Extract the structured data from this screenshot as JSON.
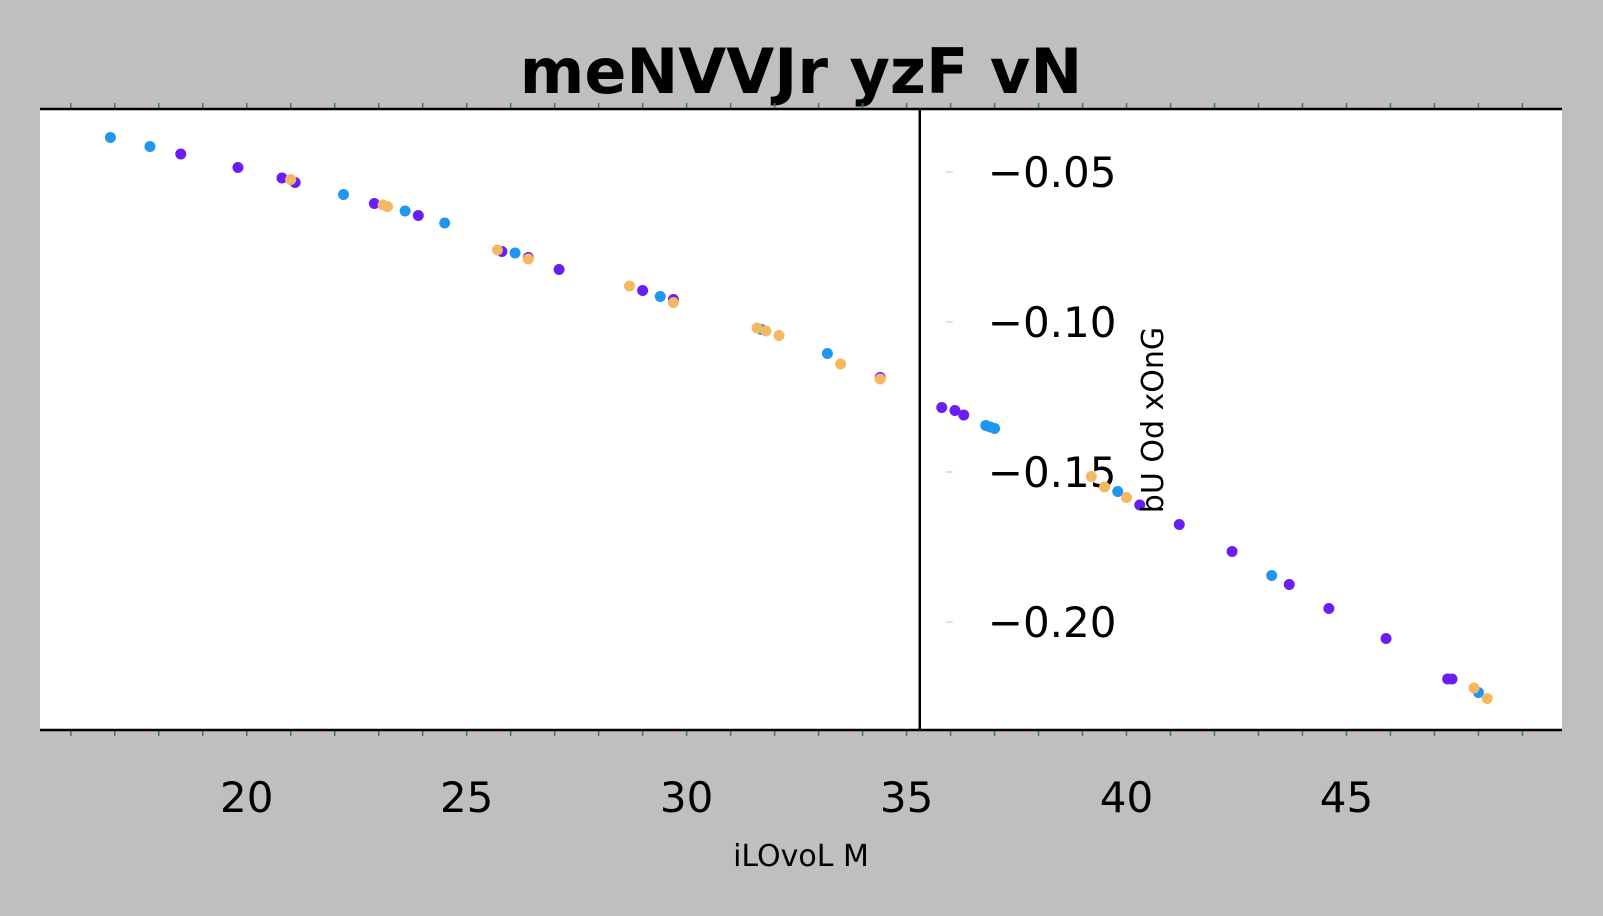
{
  "chart_data": {
    "type": "scatter",
    "title": "meNVVJr yzF  vN",
    "xlabel": "iLOvoL M",
    "ylabel": "bU Od xOnG",
    "xlim": [
      15.3,
      49.9
    ],
    "ylim": [
      -0.236,
      -0.029
    ],
    "xticks": [
      20,
      25,
      30,
      35,
      40,
      45
    ],
    "xtick_labels": [
      "20",
      "25",
      "30",
      "35",
      "40",
      "45"
    ],
    "yticks": [
      -0.05,
      -0.1,
      -0.15,
      -0.2
    ],
    "ytick_labels": [
      "−0.05",
      "−0.10",
      "−0.15",
      "−0.20"
    ],
    "y_axis_position_x": 35.3,
    "grid": false,
    "legend": "none",
    "colors": {
      "blue": "#1f96f0",
      "purple": "#6a1ef5",
      "orange": "#f5b862",
      "tick_green": "#2e8b2e"
    },
    "series": [
      {
        "color": "#1f96f0",
        "x": [
          16.9,
          17.8,
          22.2,
          23.6,
          24.5,
          26.1,
          29.4,
          31.7,
          33.2,
          36.8,
          36.9,
          37.0,
          39.8,
          43.3,
          48.0
        ],
        "y": [
          -0.0385,
          -0.0415,
          -0.0575,
          -0.063,
          -0.067,
          -0.077,
          -0.0915,
          -0.1025,
          -0.1105,
          -0.1345,
          -0.135,
          -0.1355,
          -0.1565,
          -0.1845,
          -0.2235
        ]
      },
      {
        "color": "#6a1ef5",
        "x": [
          18.5,
          19.8,
          20.8,
          21.1,
          22.9,
          23.9,
          25.8,
          26.4,
          27.1,
          29.0,
          29.7,
          34.4,
          35.8,
          36.1,
          36.3,
          40.3,
          41.2,
          42.4,
          43.7,
          44.6,
          45.9,
          47.3,
          47.4
        ],
        "y": [
          -0.044,
          -0.0485,
          -0.052,
          -0.0535,
          -0.0605,
          -0.0645,
          -0.0765,
          -0.0785,
          -0.0825,
          -0.0895,
          -0.0925,
          -0.1185,
          -0.1285,
          -0.1295,
          -0.131,
          -0.161,
          -0.1675,
          -0.1765,
          -0.1875,
          -0.1955,
          -0.2055,
          -0.219,
          -0.219
        ]
      },
      {
        "color": "#f5b862",
        "x": [
          21.0,
          23.1,
          23.2,
          25.7,
          26.4,
          28.7,
          29.7,
          31.6,
          31.8,
          32.1,
          33.5,
          34.4,
          39.2,
          39.5,
          40.0,
          47.9,
          48.2
        ],
        "y": [
          -0.0525,
          -0.061,
          -0.0615,
          -0.076,
          -0.079,
          -0.088,
          -0.0935,
          -0.102,
          -0.103,
          -0.1045,
          -0.114,
          -0.119,
          -0.1515,
          -0.155,
          -0.1585,
          -0.222,
          -0.2255
        ]
      }
    ]
  }
}
